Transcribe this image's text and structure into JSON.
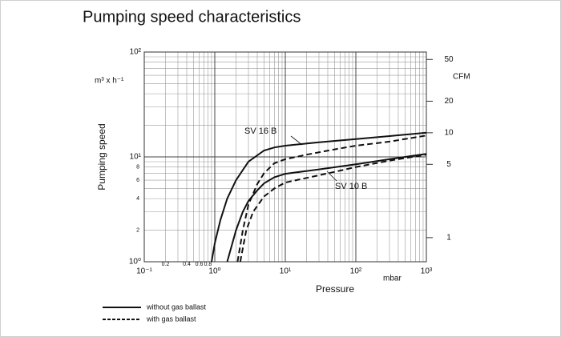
{
  "chart_data": {
    "type": "line",
    "title": "Pumping speed characteristics",
    "ylabel": "Pumping speed",
    "yunit": "m³ x h⁻¹",
    "xlabel": "Pressure",
    "xunit": "mbar",
    "y2label": "CFM",
    "xscale": "log",
    "yscale": "log",
    "y2scale": "log",
    "grid": true,
    "xlim": [
      0.1,
      1000
    ],
    "ylim": [
      1,
      100
    ],
    "y2lim": [
      0.589,
      58.86
    ],
    "xticks": [
      {
        "value": 0.1,
        "label": "10⁻¹"
      },
      0.2,
      0.4,
      0.6,
      0.8,
      {
        "value": 1,
        "label": "10⁰"
      },
      {
        "value": 10,
        "label": "10¹"
      },
      {
        "value": 100,
        "label": "10²"
      },
      {
        "value": 1000,
        "label": "10³"
      }
    ],
    "yticks": [
      {
        "value": 1,
        "label": "10⁰"
      },
      2,
      4,
      6,
      8,
      {
        "value": 10,
        "label": "10¹"
      },
      {
        "value": 100,
        "label": "10²"
      }
    ],
    "y2ticks": [
      1,
      5,
      10,
      20,
      50
    ],
    "x_minor_grid": [
      0.3,
      0.5,
      0.7,
      0.9,
      2,
      3,
      4,
      5,
      6,
      7,
      8,
      9,
      20,
      30,
      40,
      50,
      60,
      70,
      80,
      90,
      200,
      300,
      400,
      500,
      600,
      700,
      800,
      900
    ],
    "y_minor_grid": [
      3,
      5,
      7,
      9,
      20,
      30,
      40,
      50,
      60,
      70,
      80,
      90
    ],
    "annotations": [
      "SV 16 B",
      "SV 10 B"
    ],
    "legend": [
      {
        "name": "without gas ballast",
        "dashed": false
      },
      {
        "name": "with gas ballast",
        "dashed": true
      }
    ],
    "color": "#111111",
    "series": [
      {
        "annotation": 0,
        "legend": 0,
        "x": [
          0.9,
          1.0,
          1.2,
          1.5,
          2,
          3,
          5,
          7,
          10,
          30,
          100,
          300,
          1000
        ],
        "values": [
          1,
          1.5,
          2.5,
          4,
          6,
          9,
          11.5,
          12.3,
          12.8,
          13.8,
          14.8,
          15.8,
          17
        ]
      },
      {
        "annotation": 0,
        "legend": 1,
        "x": [
          2.1,
          2.5,
          3,
          4,
          5,
          7,
          10,
          20,
          50,
          100,
          300,
          1000
        ],
        "values": [
          1,
          2,
          3.5,
          5.5,
          7,
          8.7,
          9.5,
          10.5,
          11.8,
          12.8,
          14,
          16
        ]
      },
      {
        "annotation": 1,
        "legend": 0,
        "x": [
          1.5,
          2,
          2.5,
          3,
          4,
          5,
          7,
          10,
          30,
          100,
          300,
          1000
        ],
        "values": [
          1,
          2,
          3,
          3.8,
          4.8,
          5.6,
          6.4,
          6.9,
          7.6,
          8.5,
          9.5,
          10.7
        ]
      },
      {
        "annotation": 1,
        "legend": 1,
        "x": [
          2.3,
          2.8,
          3.5,
          5,
          7,
          10,
          20,
          50,
          100,
          300,
          1000
        ],
        "values": [
          1,
          2,
          3,
          4.2,
          5,
          5.7,
          6.3,
          7.2,
          8,
          9.2,
          10.5
        ]
      }
    ]
  }
}
